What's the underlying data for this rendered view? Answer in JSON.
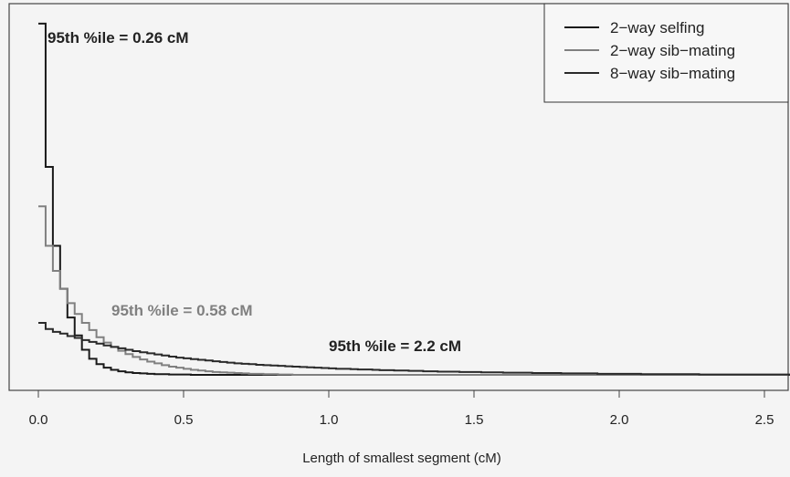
{
  "chart_data": {
    "type": "line",
    "title": "",
    "xlabel": "Length of smallest segment (cM)",
    "ylabel": "",
    "xlim": [
      -0.1,
      2.6
    ],
    "ylim": [
      0,
      1.0
    ],
    "xticks": [
      "0.0",
      "0.5",
      "1.0",
      "1.5",
      "2.0",
      "2.5"
    ],
    "grid": false,
    "legend_position": "top-right",
    "legend": [
      "2−way selfing",
      "2−way sib−mating",
      "8−way sib−mating"
    ],
    "series": [
      {
        "name": "2−way selfing",
        "color": "#1a1a1a",
        "step": 0.025,
        "values": [
          0.98,
          0.58,
          0.36,
          0.24,
          0.16,
          0.11,
          0.07,
          0.045,
          0.03,
          0.02,
          0.014,
          0.01,
          0.007,
          0.005,
          0.004,
          0.003,
          0.002,
          0.002,
          0.001,
          0.001,
          0.001,
          0.0,
          0.0,
          0.0,
          0.0
        ]
      },
      {
        "name": "2−way sib−mating",
        "color": "#808080",
        "step": 0.025,
        "values": [
          0.47,
          0.36,
          0.29,
          0.24,
          0.2,
          0.17,
          0.145,
          0.125,
          0.105,
          0.09,
          0.078,
          0.067,
          0.058,
          0.05,
          0.043,
          0.037,
          0.032,
          0.027,
          0.023,
          0.02,
          0.017,
          0.014,
          0.012,
          0.01,
          0.008,
          0.007,
          0.006,
          0.005,
          0.004,
          0.003,
          0.003,
          0.002,
          0.002,
          0.001,
          0.001,
          0.0
        ]
      },
      {
        "name": "8−way sib−mating",
        "color": "#2a2a2a",
        "step": 0.025,
        "values": [
          0.145,
          0.128,
          0.12,
          0.115,
          0.108,
          0.103,
          0.097,
          0.092,
          0.087,
          0.082,
          0.078,
          0.074,
          0.07,
          0.066,
          0.063,
          0.06,
          0.057,
          0.054,
          0.051,
          0.048,
          0.046,
          0.044,
          0.042,
          0.04,
          0.038,
          0.036,
          0.034,
          0.032,
          0.031,
          0.03,
          0.028,
          0.027,
          0.026,
          0.025,
          0.024,
          0.023,
          0.022,
          0.021,
          0.02,
          0.019,
          0.018,
          0.017,
          0.017,
          0.016,
          0.015,
          0.015,
          0.014,
          0.013,
          0.013,
          0.012,
          0.012,
          0.011,
          0.011,
          0.01,
          0.01,
          0.009,
          0.009,
          0.009,
          0.008,
          0.008,
          0.008,
          0.007,
          0.007,
          0.007,
          0.006,
          0.006,
          0.006,
          0.006,
          0.005,
          0.005,
          0.005,
          0.005,
          0.004,
          0.004,
          0.004,
          0.004,
          0.004,
          0.003,
          0.003,
          0.003,
          0.003,
          0.003,
          0.003,
          0.002,
          0.002,
          0.002,
          0.002,
          0.002,
          0.002,
          0.002,
          0.002,
          0.001,
          0.001,
          0.001,
          0.001,
          0.001,
          0.001,
          0.001,
          0.001,
          0.001,
          0.001,
          0.001,
          0.001,
          0.001
        ]
      }
    ],
    "annotations": [
      {
        "text": "95th %ile = 0.26 cM",
        "series": 0,
        "x": 0.26
      },
      {
        "text": "95th %ile = 0.58 cM",
        "series": 1,
        "x": 0.58
      },
      {
        "text": "95th %ile = 2.2 cM",
        "series": 2,
        "x": 2.2
      }
    ]
  }
}
